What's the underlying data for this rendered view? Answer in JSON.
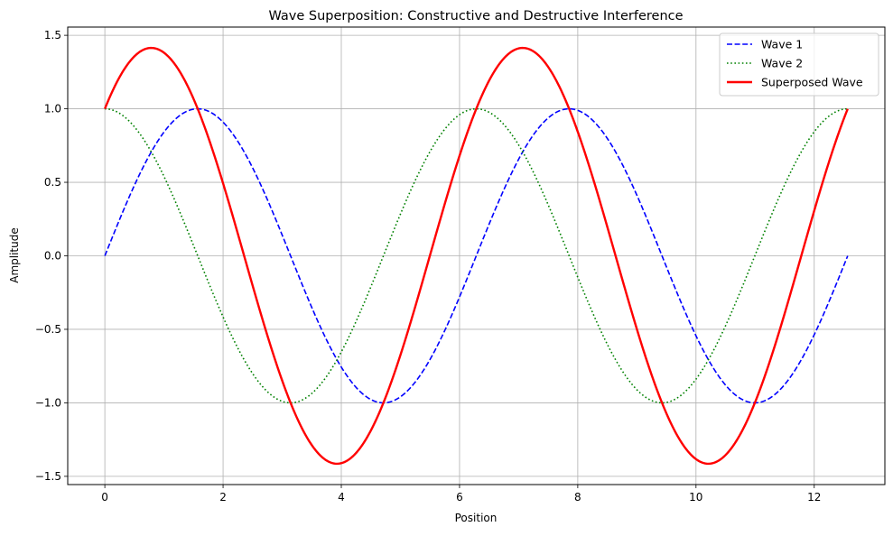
{
  "chart_data": {
    "type": "line",
    "title": "Wave Superposition: Constructive and Destructive Interference",
    "xlabel": "Position",
    "ylabel": "Amplitude",
    "xlim": [
      -0.628,
      13.195
    ],
    "ylim": [
      -1.556,
      1.556
    ],
    "x_range": [
      0,
      12.566
    ],
    "x_ticks": [
      0,
      2,
      4,
      6,
      8,
      10,
      12
    ],
    "x_tick_labels": [
      "0",
      "2",
      "4",
      "6",
      "8",
      "10",
      "12"
    ],
    "y_ticks": [
      -1.5,
      -1.0,
      -0.5,
      0.0,
      0.5,
      1.0,
      1.5
    ],
    "y_tick_labels": [
      "−1.5",
      "−1.0",
      "−0.5",
      "0.0",
      "0.5",
      "1.0",
      "1.5"
    ],
    "grid": true,
    "legend_position": "top-right",
    "series": [
      {
        "name": "Wave 1",
        "function": "sin(x)",
        "color": "#0000ff",
        "style": "dashed"
      },
      {
        "name": "Wave 2",
        "function": "cos(x)",
        "color": "#008000",
        "style": "dotted"
      },
      {
        "name": "Superposed Wave",
        "function": "sin(x) + cos(x)",
        "color": "#ff0000",
        "style": "solid"
      }
    ]
  },
  "colors": {
    "grid": "#b0b0b0",
    "axes": "#000000",
    "background": "#ffffff"
  }
}
